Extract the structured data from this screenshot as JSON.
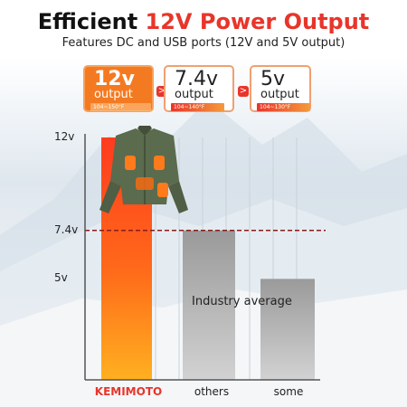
{
  "title": {
    "prefix": "Efficient",
    "highlight": "12V Power Output"
  },
  "subtitle": "Features DC and USB ports (12V and 5V output)",
  "cards": [
    {
      "voltage": "12v",
      "label": "output",
      "range": "104~150°F"
    },
    {
      "voltage": "7.4v",
      "label": "output",
      "range": "104~140°F"
    },
    {
      "voltage": "5v",
      "label": "output",
      "range": "104~130°F"
    }
  ],
  "arrow_glyph": ">",
  "colors": {
    "accent": "#e8352a",
    "orange": "#f47a21",
    "gray_bar": "#b5b5b5",
    "avg_line": "#8b1a1a"
  },
  "chart_data": {
    "type": "bar",
    "categories": [
      "KEMIMOTO",
      "others",
      "some"
    ],
    "values": [
      12,
      7.4,
      5
    ],
    "y_ticks": [
      {
        "value": 12,
        "label": "12v"
      },
      {
        "value": 7.4,
        "label": "7.4v"
      },
      {
        "value": 5,
        "label": "5v"
      }
    ],
    "ylim": [
      0,
      12
    ],
    "reference_line": {
      "value": 7.4,
      "label": "Industry average",
      "style": "dashed"
    },
    "grid": "vertical"
  }
}
